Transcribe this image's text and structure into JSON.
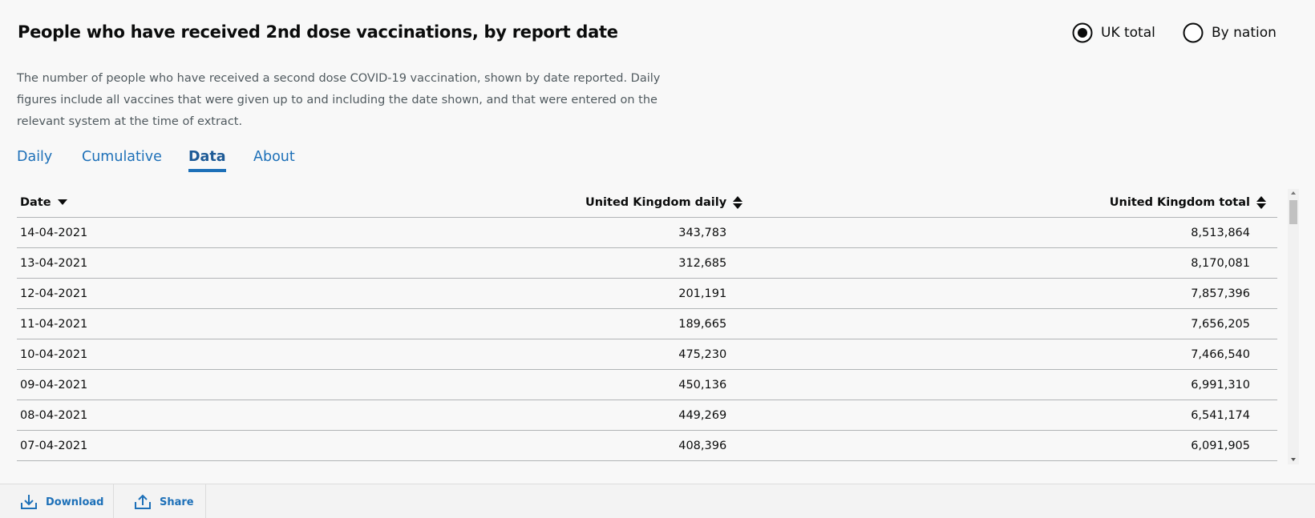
{
  "header": {
    "title": "People who have received 2nd dose vaccinations, by report date",
    "options": [
      "UK total",
      "By nation"
    ],
    "selected_option": "UK total",
    "description": "The number of people who have received a second dose COVID-19 vaccination, shown by date reported. Daily figures include all vaccines that were given up to and including the date shown, and that were entered on the relevant system at the time of extract."
  },
  "tabs": {
    "items": [
      "Daily",
      "Cumulative",
      "Data",
      "About"
    ],
    "active": "Data"
  },
  "table": {
    "columns": [
      "Date",
      "United Kingdom daily",
      "United Kingdom total"
    ],
    "rows": [
      [
        "14-04-2021",
        "343,783",
        "8,513,864"
      ],
      [
        "13-04-2021",
        "312,685",
        "8,170,081"
      ],
      [
        "12-04-2021",
        "201,191",
        "7,857,396"
      ],
      [
        "11-04-2021",
        "189,665",
        "7,656,205"
      ],
      [
        "10-04-2021",
        "475,230",
        "7,466,540"
      ],
      [
        "09-04-2021",
        "450,136",
        "6,991,310"
      ],
      [
        "08-04-2021",
        "449,269",
        "6,541,174"
      ],
      [
        "07-04-2021",
        "408,396",
        "6,091,905"
      ]
    ]
  },
  "footer": {
    "actions": [
      "Download",
      "Share"
    ]
  }
}
